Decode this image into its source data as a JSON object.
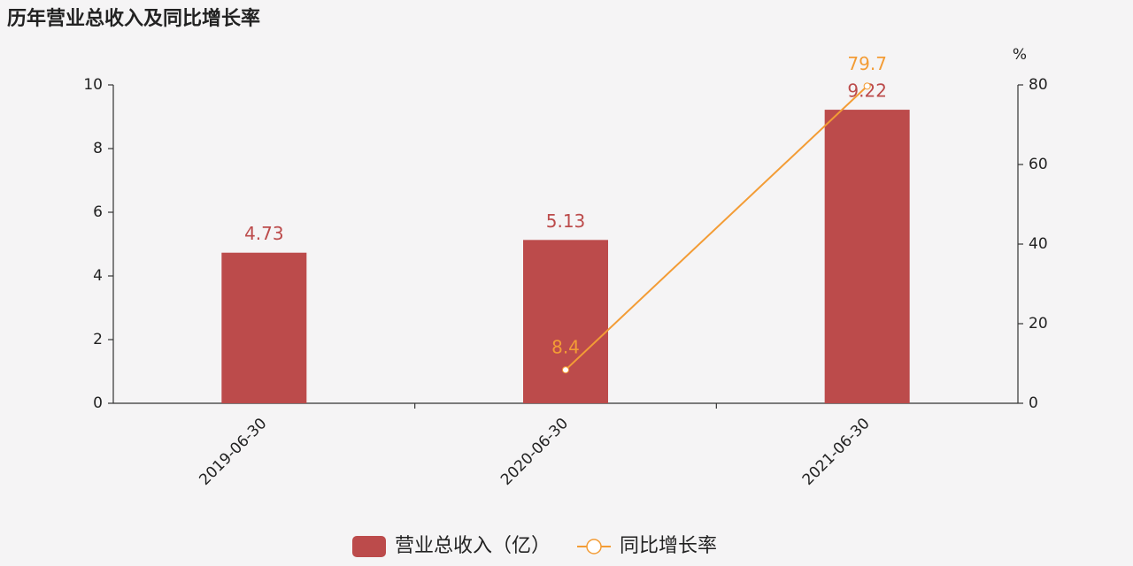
{
  "chart_data": {
    "type": "bar",
    "title": "历年营业总收入及同比增长率",
    "categories": [
      "2019-06-30",
      "2020-06-30",
      "2021-06-30"
    ],
    "series": [
      {
        "name": "营业总收入（亿）",
        "color": "#bc4b4b",
        "values": [
          4.73,
          5.13,
          9.22
        ]
      },
      {
        "name": "同比增长率",
        "color": "#f39c35",
        "type": "line",
        "axis": "y2",
        "values": [
          null,
          8.4,
          79.7
        ]
      }
    ],
    "ylim": [
      0,
      10
    ],
    "yticks": [
      0,
      2,
      4,
      6,
      8,
      10
    ],
    "y2lim": [
      0,
      80
    ],
    "y2ticks": [
      0,
      20,
      40,
      60,
      80
    ],
    "y2label": "%"
  }
}
